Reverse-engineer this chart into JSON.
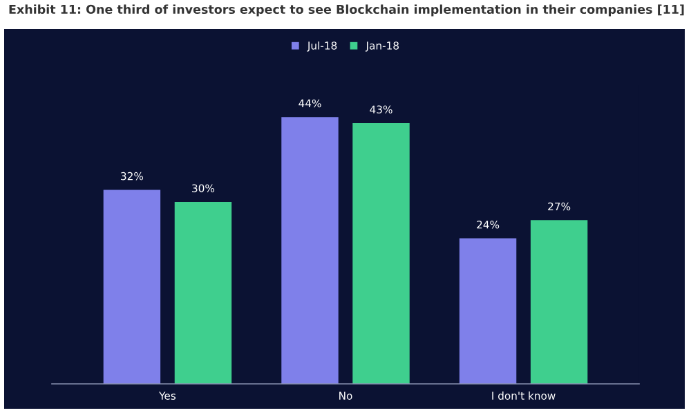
{
  "chart_data": {
    "type": "bar",
    "title": "Exhibit 11: One third of investors expect to see Blockchain implementation in their companies [11]",
    "categories": [
      "Yes",
      "No",
      "I don't know"
    ],
    "series": [
      {
        "name": "Jul-18",
        "color": "#7f80ea",
        "values": [
          32,
          44,
          24
        ],
        "value_labels": [
          "32%",
          "44%",
          "24%"
        ]
      },
      {
        "name": "Jan-18",
        "color": "#3fcf8e",
        "values": [
          30,
          43,
          27
        ],
        "value_labels": [
          "30%",
          "43%",
          "27%"
        ]
      }
    ],
    "legend": "top"
  }
}
